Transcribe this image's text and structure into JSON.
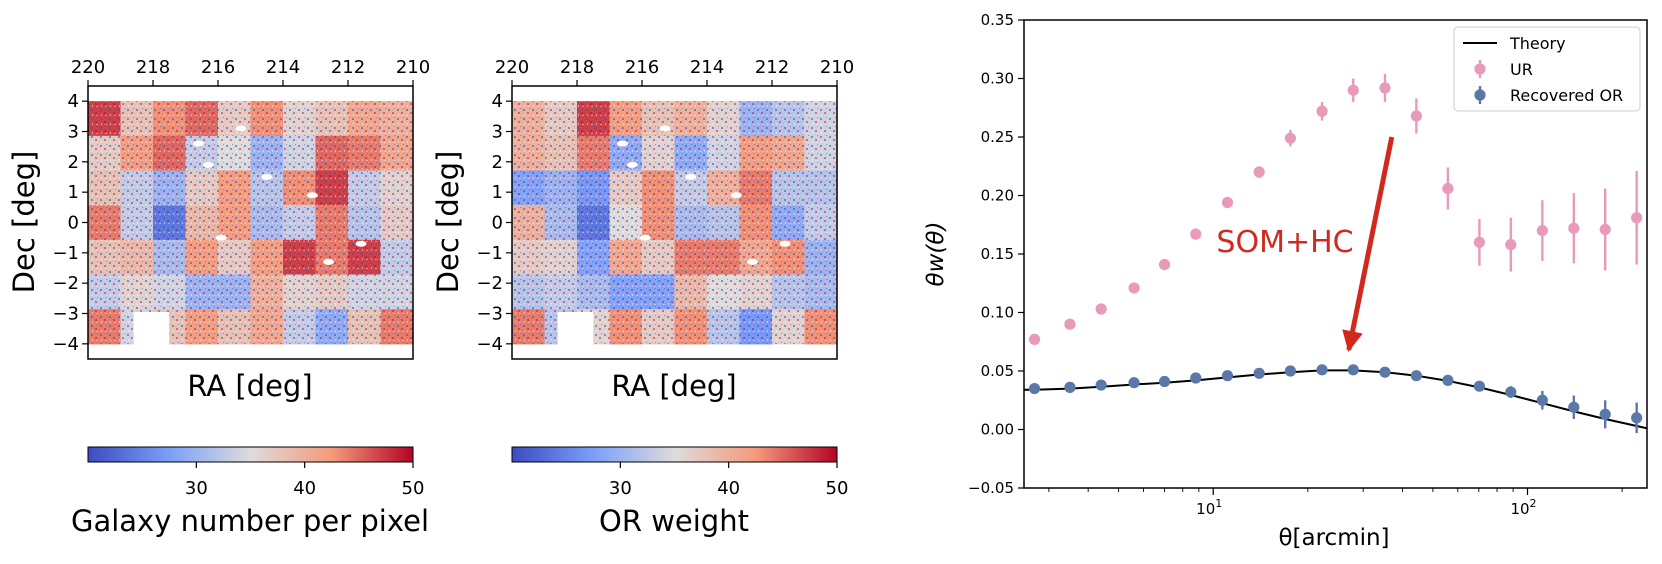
{
  "chart_data": [
    {
      "type": "heatmap",
      "colorbar_label": "Galaxy number per pixel",
      "xlabel": "RA [deg]",
      "ylabel": "Dec [deg]",
      "xlim": [
        220,
        210
      ],
      "ylim": [
        -4.5,
        4.5
      ],
      "x_ticks": [
        220,
        218,
        216,
        214,
        212,
        210
      ],
      "y_ticks": [
        4,
        3,
        2,
        1,
        0,
        -1,
        -2,
        -3,
        -4
      ],
      "x_tick_labels": [
        "220",
        "218",
        "216",
        "214",
        "212",
        "210"
      ],
      "y_tick_labels": [
        "4",
        "3",
        "2",
        "1",
        "0",
        "−1",
        "−2",
        "−3",
        "−4"
      ],
      "colorbar_ticks": [
        30,
        40,
        50
      ],
      "colorbar_tick_labels": [
        "30",
        "40",
        "50"
      ],
      "colorbar_range": [
        20,
        50
      ],
      "colormap": "coolwarm",
      "tile_values": [
        [
          47,
          38,
          43,
          45,
          37,
          43,
          36,
          38,
          41,
          40
        ],
        [
          37,
          42,
          45,
          33,
          35,
          30,
          34,
          45,
          44,
          41
        ],
        [
          38,
          33,
          30,
          37,
          42,
          32,
          43,
          47,
          33,
          36
        ],
        [
          44,
          33,
          24,
          39,
          42,
          31,
          33,
          44,
          32,
          37
        ],
        [
          38,
          39,
          31,
          42,
          37,
          42,
          47,
          44,
          47,
          33
        ],
        [
          33,
          36,
          34,
          30,
          30,
          40,
          36,
          37,
          34,
          34
        ],
        [
          44,
          34,
          38,
          42,
          38,
          41,
          33,
          29,
          38,
          44
        ]
      ]
    },
    {
      "type": "heatmap",
      "colorbar_label": "OR weight",
      "xlabel": "RA [deg]",
      "ylabel": "Dec [deg]",
      "xlim": [
        220,
        210
      ],
      "ylim": [
        -4.5,
        4.5
      ],
      "x_ticks": [
        220,
        218,
        216,
        214,
        212,
        210
      ],
      "y_ticks": [
        4,
        3,
        2,
        1,
        0,
        -1,
        -2,
        -3,
        -4
      ],
      "x_tick_labels": [
        "220",
        "218",
        "216",
        "214",
        "212",
        "210"
      ],
      "y_tick_labels": [
        "4",
        "3",
        "2",
        "1",
        "0",
        "−1",
        "−2",
        "−3",
        "−4"
      ],
      "colorbar_ticks": [
        30,
        40,
        50
      ],
      "colorbar_tick_labels": [
        "30",
        "40",
        "50"
      ],
      "colorbar_range": [
        20,
        50
      ],
      "colormap": "coolwarm",
      "tile_values": [
        [
          40,
          37,
          47,
          42,
          38,
          40,
          36,
          30,
          32,
          34
        ],
        [
          40,
          38,
          44,
          29,
          36,
          29,
          34,
          42,
          41,
          34
        ],
        [
          28,
          30,
          27,
          37,
          43,
          33,
          40,
          44,
          32,
          32
        ],
        [
          40,
          31,
          24,
          35,
          43,
          31,
          32,
          43,
          29,
          33
        ],
        [
          37,
          36,
          28,
          41,
          37,
          44,
          44,
          41,
          43,
          30
        ],
        [
          32,
          33,
          31,
          28,
          28,
          39,
          35,
          36,
          32,
          31
        ],
        [
          44,
          32,
          36,
          43,
          37,
          43,
          32,
          27,
          36,
          43
        ]
      ]
    },
    {
      "type": "scatter",
      "xlabel": "θ[arcmin]",
      "ylabel": "θw(θ)",
      "x_scale": "log",
      "xlim": [
        2.5,
        240
      ],
      "ylim": [
        -0.05,
        0.35
      ],
      "y_ticks": [
        -0.05,
        0.0,
        0.05,
        0.1,
        0.15,
        0.2,
        0.25,
        0.3,
        0.35
      ],
      "y_tick_labels": [
        "−0.05",
        "0.00",
        "0.05",
        "0.10",
        "0.15",
        "0.20",
        "0.25",
        "0.30",
        "0.35"
      ],
      "x_major_ticks": [
        10,
        100
      ],
      "x_tick_labels": [
        {
          "base": "10",
          "exp": "1"
        },
        {
          "base": "10",
          "exp": "2"
        }
      ],
      "legend_position": "top-right",
      "annotation": {
        "text": "SOM+HC",
        "arrow_from": [
          37,
          0.25
        ],
        "arrow_to": [
          27,
          0.068
        ]
      },
      "series": [
        {
          "name": "Theory",
          "kind": "line",
          "color": "#000000",
          "x": [
            2.5,
            2.7,
            3.5,
            4.4,
            5.6,
            7.0,
            8.8,
            11.1,
            14.0,
            17.6,
            22.2,
            27.9,
            35.2,
            44.3,
            55.8,
            70.3,
            88.5,
            111.5,
            140.4,
            176.7,
            222.5,
            240
          ],
          "y": [
            0.034,
            0.034,
            0.035,
            0.0365,
            0.0385,
            0.04,
            0.042,
            0.0445,
            0.047,
            0.049,
            0.0505,
            0.0505,
            0.049,
            0.046,
            0.0415,
            0.036,
            0.0295,
            0.0225,
            0.0155,
            0.009,
            0.003,
            0.001
          ]
        },
        {
          "name": "UR",
          "kind": "errorbar",
          "color": "#e79aba",
          "x": [
            2.7,
            3.5,
            4.4,
            5.6,
            7.0,
            8.8,
            11.1,
            14.0,
            17.6,
            22.2,
            27.9,
            35.2,
            44.3,
            55.8,
            70.3,
            88.5,
            111.5,
            140.4,
            176.7,
            222.5
          ],
          "y": [
            0.077,
            0.09,
            0.103,
            0.121,
            0.141,
            0.167,
            0.194,
            0.22,
            0.249,
            0.272,
            0.29,
            0.292,
            0.268,
            0.206,
            0.16,
            0.158,
            0.17,
            0.172,
            0.171,
            0.181
          ],
          "yerr": [
            0.002,
            0.002,
            0.003,
            0.003,
            0.004,
            0.004,
            0.004,
            0.005,
            0.007,
            0.008,
            0.01,
            0.012,
            0.015,
            0.018,
            0.02,
            0.023,
            0.026,
            0.03,
            0.035,
            0.04
          ]
        },
        {
          "name": "Recovered OR",
          "kind": "errorbar",
          "color": "#5a78a8",
          "x": [
            2.7,
            3.5,
            4.4,
            5.6,
            7.0,
            8.8,
            11.1,
            14.0,
            17.6,
            22.2,
            27.9,
            35.2,
            44.3,
            55.8,
            70.3,
            88.5,
            111.5,
            140.4,
            176.7,
            222.5
          ],
          "y": [
            0.035,
            0.036,
            0.038,
            0.04,
            0.041,
            0.044,
            0.046,
            0.048,
            0.05,
            0.051,
            0.051,
            0.049,
            0.046,
            0.042,
            0.037,
            0.032,
            0.025,
            0.019,
            0.013,
            0.01
          ],
          "yerr": [
            0.001,
            0.001,
            0.001,
            0.001,
            0.001,
            0.001,
            0.001,
            0.001,
            0.001,
            0.001,
            0.002,
            0.002,
            0.002,
            0.003,
            0.004,
            0.005,
            0.008,
            0.01,
            0.012,
            0.013
          ]
        }
      ]
    }
  ]
}
